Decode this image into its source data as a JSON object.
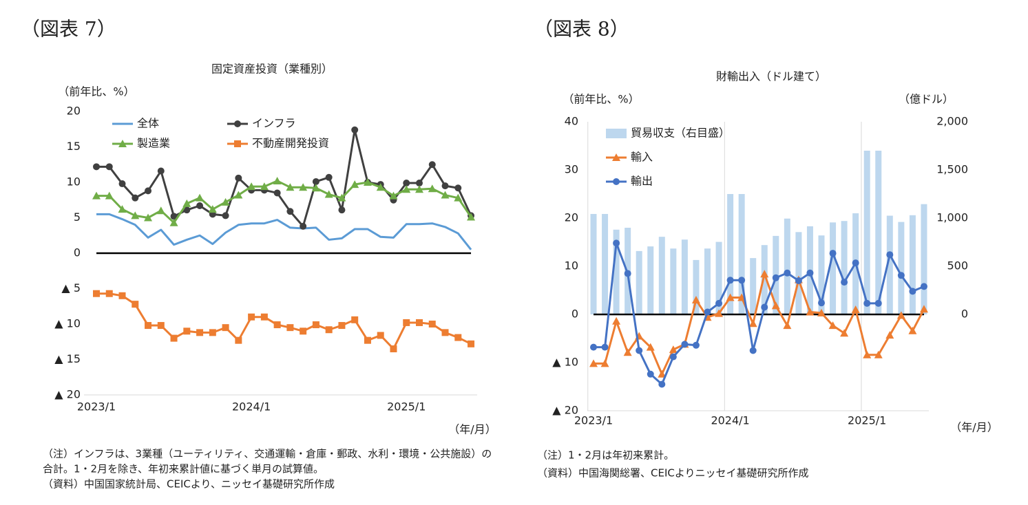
{
  "figure_labels": [
    "（図表 7）",
    "（図表 8）"
  ],
  "notes": [
    [
      "（注）インフラは、3業種（ユーティリティ、交通運輸・倉庫・郵政、水利・環境・公共施設）の",
      "合計。1・2月を除き、年初来累計値に基づく単月の試算値。",
      "（資料）中国国家統計局、CEICより、ニッセイ基礎研究所作成"
    ],
    [
      "（注）1・2月は年初来累計。",
      "（資料）中国海関総署、CEICよりニッセイ基礎研究所作成"
    ]
  ],
  "chart_data": [
    {
      "type": "line",
      "title": "固定資産投資（業種別）",
      "y_label": "（前年比、%）",
      "x_label": "（年/月）",
      "categories": [
        "2023/1",
        null,
        null,
        null,
        null,
        null,
        null,
        null,
        null,
        null,
        null,
        null,
        "2024/1",
        null,
        null,
        null,
        null,
        null,
        null,
        null,
        null,
        null,
        null,
        null,
        "2025/1",
        null,
        null,
        null,
        null,
        null
      ],
      "ylim": [
        -20,
        20
      ],
      "yticks": [
        20,
        15,
        10,
        5,
        0,
        {
          "value": -5,
          "label": "▲ 5"
        },
        {
          "value": -10,
          "label": "▲ 10"
        },
        {
          "value": -15,
          "label": "▲ 15"
        },
        {
          "value": -20,
          "label": "▲ 20"
        }
      ],
      "vgrid": false,
      "series": [
        {
          "name": "全体",
          "color": "#5b9bd5",
          "marker": "none",
          "values": [
            5.5,
            5.5,
            4.8,
            4.0,
            2.2,
            3.3,
            1.2,
            1.9,
            2.5,
            1.3,
            2.9,
            4.0,
            4.2,
            4.2,
            4.7,
            3.6,
            3.5,
            3.6,
            1.9,
            2.1,
            3.4,
            3.4,
            2.3,
            2.2,
            4.1,
            4.1,
            4.2,
            3.7,
            2.8,
            0.5
          ]
        },
        {
          "name": "インフラ",
          "color": "#404040",
          "marker": "circle",
          "values": [
            12.2,
            12.2,
            9.8,
            7.8,
            8.8,
            11.6,
            5.2,
            6.1,
            6.7,
            5.5,
            5.3,
            10.6,
            8.9,
            8.9,
            8.5,
            5.9,
            3.8,
            10.1,
            10.7,
            6.1,
            17.4,
            10.0,
            9.7,
            7.5,
            9.9,
            9.9,
            12.5,
            9.5,
            9.2,
            5.3
          ]
        },
        {
          "name": "製造業",
          "color": "#70ad47",
          "marker": "triangle",
          "values": [
            8.1,
            8.1,
            6.2,
            5.3,
            5.0,
            6.0,
            4.3,
            7.0,
            7.8,
            6.2,
            7.2,
            8.2,
            9.4,
            9.4,
            10.2,
            9.3,
            9.3,
            9.2,
            8.3,
            7.8,
            9.7,
            10.0,
            9.3,
            8.1,
            9.0,
            9.0,
            9.1,
            8.2,
            7.8,
            5.1
          ]
        },
        {
          "name": "不動産開発投資",
          "color": "#ed7d31",
          "marker": "square",
          "values": [
            -5.7,
            -5.7,
            -6.0,
            -7.2,
            -10.2,
            -10.2,
            -12.0,
            -11.0,
            -11.2,
            -11.2,
            -10.5,
            -12.3,
            -9.0,
            -9.0,
            -10.1,
            -10.5,
            -11.0,
            -10.1,
            -10.8,
            -10.2,
            -9.4,
            -12.3,
            -11.6,
            -13.5,
            -9.8,
            -9.8,
            -10.0,
            -11.2,
            -11.9,
            -12.8
          ]
        }
      ]
    },
    {
      "type": "bar-line",
      "title": "財輸出入（ドル建て）",
      "y_label": "（前年比、%）",
      "y2_label": "（億ドル）",
      "x_label": "（年/月）",
      "categories": [
        "2023/1",
        null,
        null,
        null,
        null,
        null,
        null,
        null,
        null,
        null,
        null,
        null,
        "2024/1",
        null,
        null,
        null,
        null,
        null,
        null,
        null,
        null,
        null,
        null,
        null,
        "2025/1",
        null,
        null,
        null,
        null,
        null
      ],
      "ylim": [
        -20,
        40
      ],
      "yticks": [
        40,
        30,
        20,
        10,
        0,
        {
          "value": -10,
          "label": "▲ 10"
        },
        {
          "value": -20,
          "label": "▲ 20"
        }
      ],
      "y2lim": [
        -1000,
        2000
      ],
      "y2ticks": [
        {
          "value": 2000,
          "label": "2,000"
        },
        {
          "value": 1500,
          "label": "1,500"
        },
        {
          "value": 1000,
          "label": "1,000"
        },
        500,
        0
      ],
      "vgrid": true,
      "series": [
        {
          "name": "貿易収支（右目盛）",
          "color": "#bdd7ee",
          "marker": "bar",
          "axis": "y2",
          "values": [
            1043,
            1043,
            880,
            900,
            658,
            706,
            806,
            684,
            777,
            565,
            684,
            753,
            1250,
            1250,
            585,
            720,
            815,
            995,
            855,
            915,
            820,
            955,
            970,
            1050,
            1700,
            1700,
            1025,
            960,
            1030,
            1145
          ]
        },
        {
          "name": "輸入",
          "color": "#ed7d31",
          "marker": "triangle",
          "values": [
            -10.2,
            -10.2,
            -1.4,
            -7.9,
            -4.5,
            -6.8,
            -12.4,
            -7.3,
            -6.2,
            3.0,
            -0.6,
            0.2,
            3.5,
            3.5,
            -1.9,
            8.4,
            1.8,
            -2.3,
            7.2,
            0.5,
            0.3,
            -2.3,
            -3.9,
            1.0,
            -8.4,
            -8.4,
            -4.3,
            -0.2,
            -3.4,
            1.1
          ]
        },
        {
          "name": "輸出",
          "color": "#4472c4",
          "marker": "circle",
          "values": [
            -6.8,
            -6.8,
            14.8,
            8.5,
            -7.5,
            -12.4,
            -14.5,
            -8.8,
            -6.2,
            -6.4,
            0.5,
            2.3,
            7.1,
            7.1,
            -7.5,
            1.5,
            7.6,
            8.6,
            7.0,
            8.6,
            2.4,
            12.7,
            6.7,
            10.7,
            2.3,
            2.3,
            12.4,
            8.1,
            4.8,
            5.8
          ]
        }
      ]
    }
  ]
}
